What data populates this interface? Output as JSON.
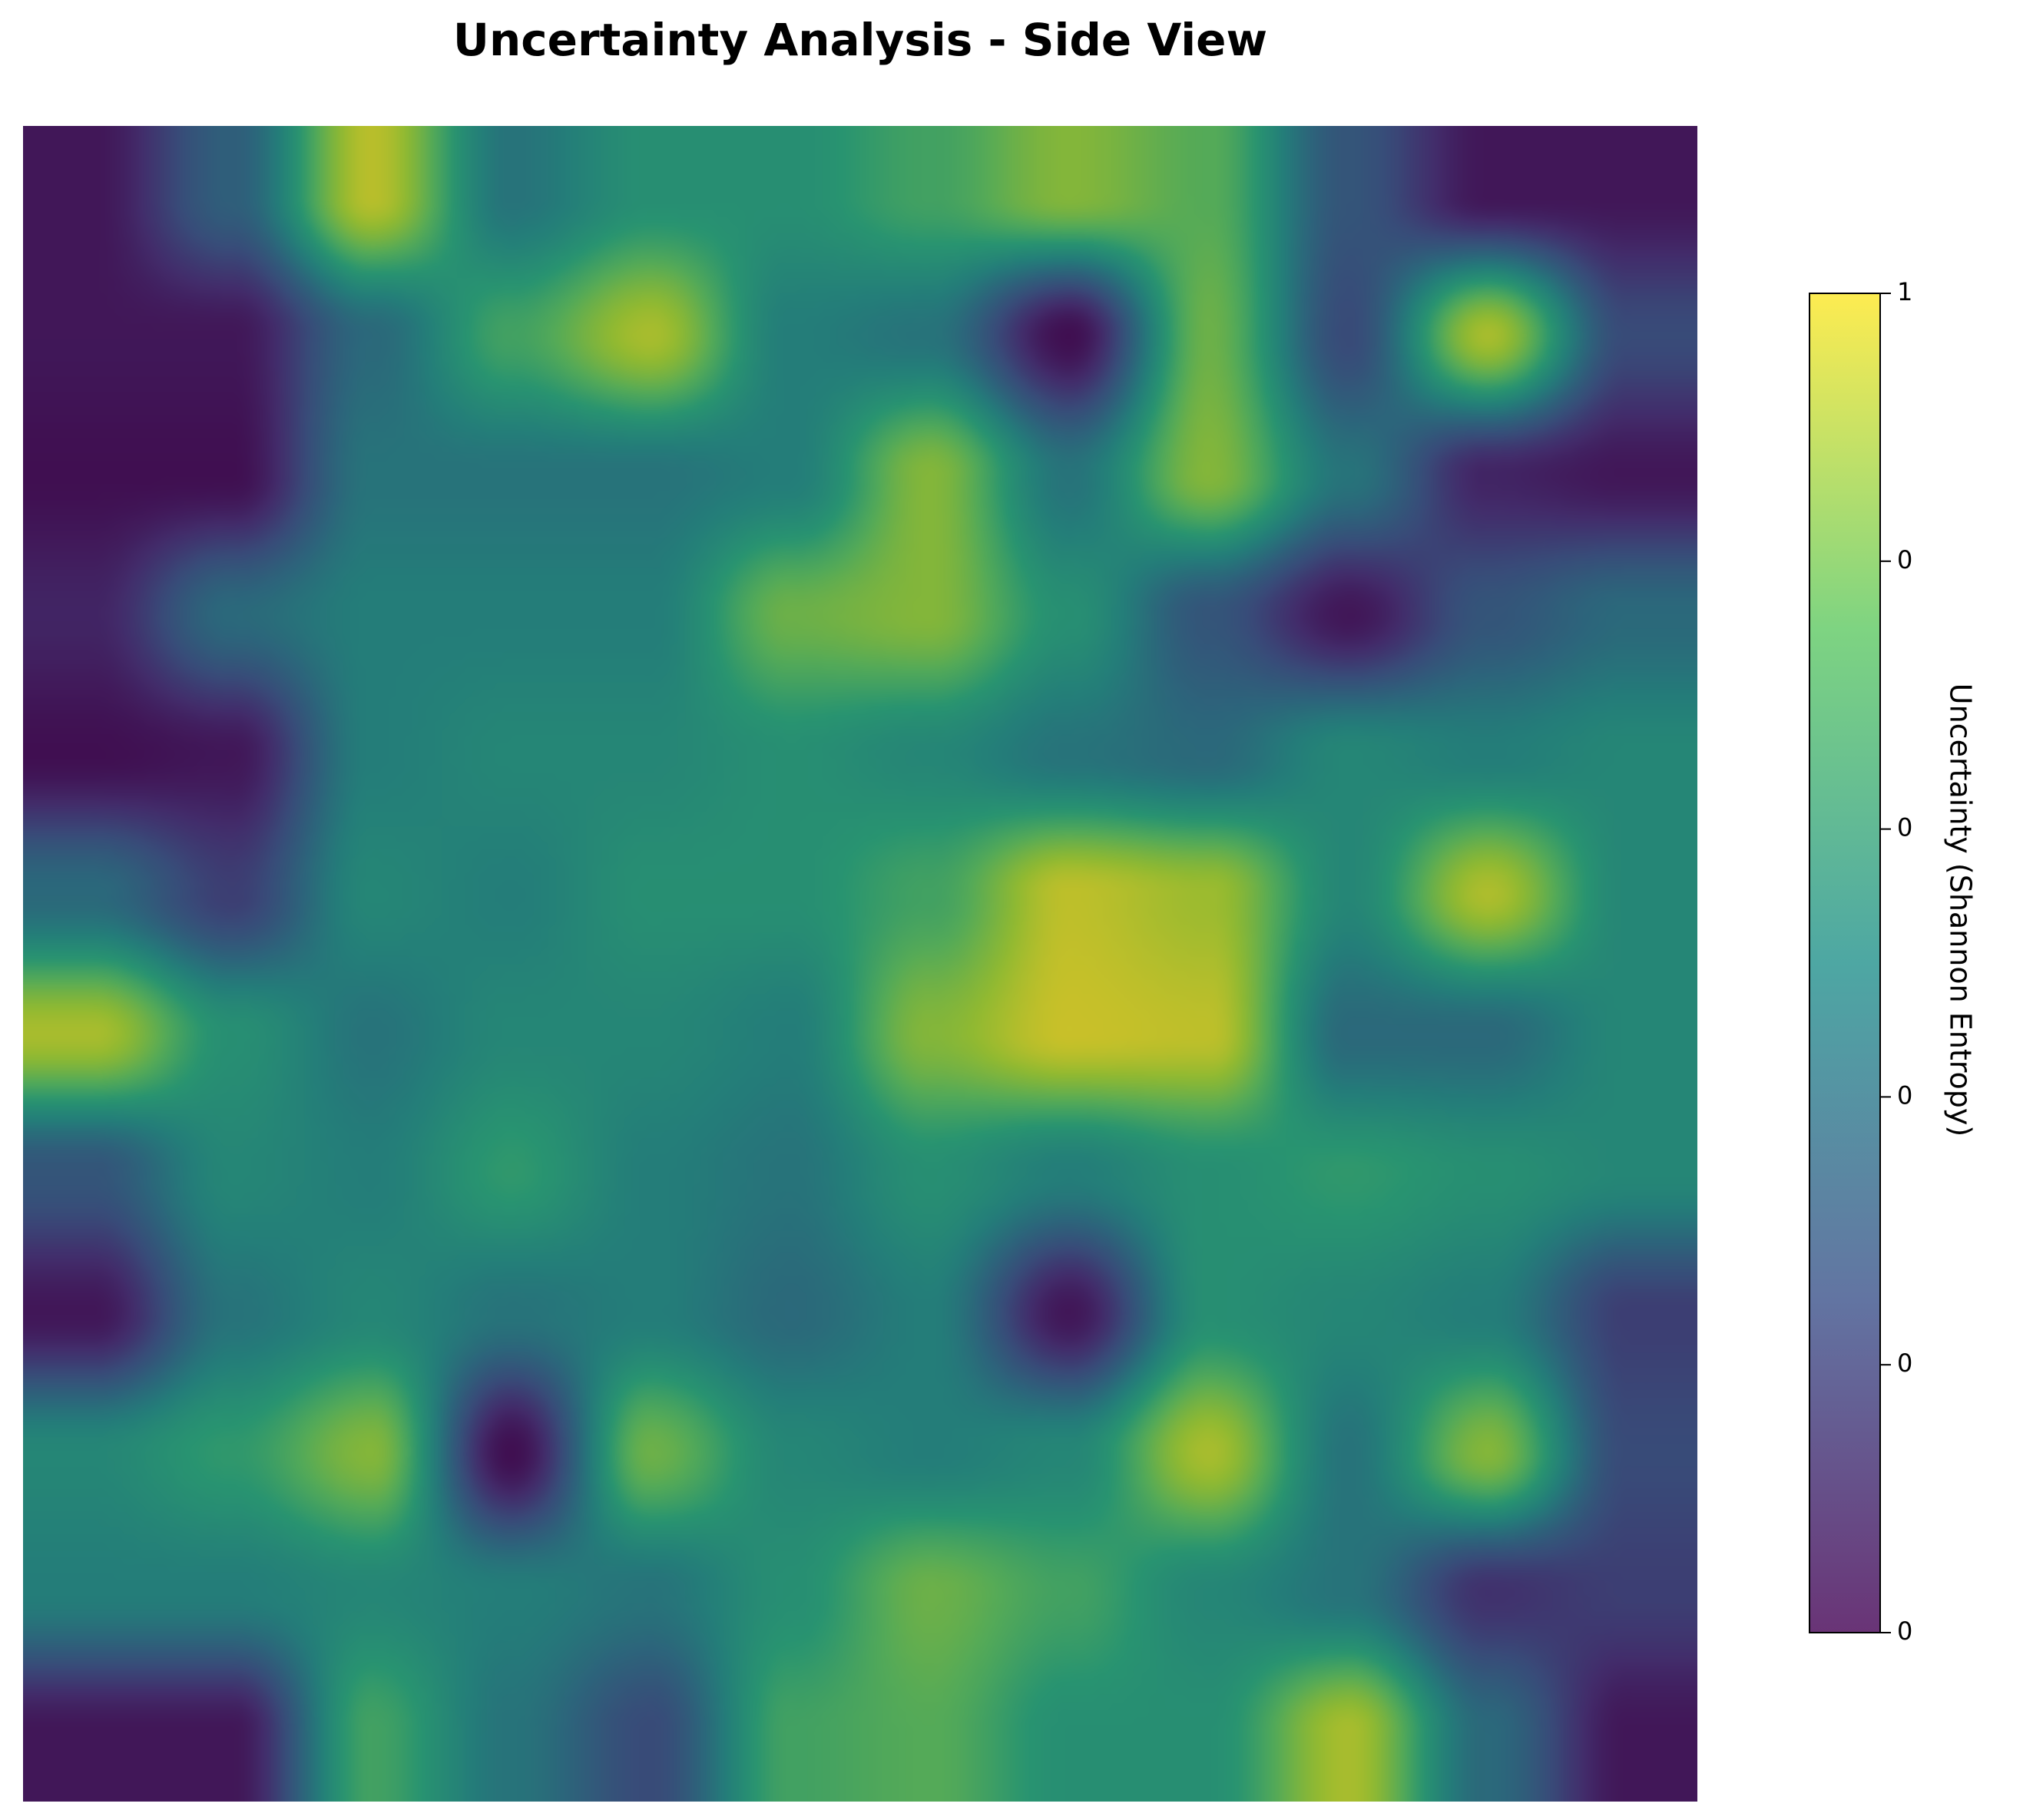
{
  "chart_data": {
    "type": "heatmap",
    "title": "Uncertainty Analysis - Side View",
    "colorbar": {
      "label": "Uncertainty (Shannon Entropy)",
      "range": [
        0.0,
        1.0
      ],
      "ticks": [
        "0.0",
        "0.2",
        "0.4",
        "0.6",
        "0.8",
        "1.0"
      ],
      "colormap": "viridis"
    },
    "interpolation": "smooth (bicubic)",
    "axes_visible": false,
    "grid": false,
    "overlay_alpha": 0.8,
    "rows": 12,
    "cols": 12,
    "values": [
      [
        0.05,
        0.35,
        0.95,
        0.45,
        0.6,
        0.6,
        0.7,
        0.85,
        0.75,
        0.3,
        0.05,
        0.05
      ],
      [
        0.05,
        0.05,
        0.4,
        0.7,
        0.92,
        0.5,
        0.45,
        0.02,
        0.8,
        0.25,
        0.92,
        0.25
      ],
      [
        0.02,
        0.02,
        0.45,
        0.45,
        0.45,
        0.5,
        0.85,
        0.45,
        0.85,
        0.45,
        0.1,
        0.05
      ],
      [
        0.1,
        0.4,
        0.5,
        0.5,
        0.5,
        0.8,
        0.85,
        0.6,
        0.3,
        0.05,
        0.3,
        0.4
      ],
      [
        0.02,
        0.05,
        0.5,
        0.55,
        0.55,
        0.6,
        0.55,
        0.45,
        0.4,
        0.55,
        0.5,
        0.55
      ],
      [
        0.4,
        0.2,
        0.55,
        0.5,
        0.6,
        0.6,
        0.7,
        0.96,
        0.9,
        0.55,
        0.93,
        0.55
      ],
      [
        0.92,
        0.6,
        0.45,
        0.55,
        0.55,
        0.5,
        0.85,
        0.98,
        0.96,
        0.4,
        0.4,
        0.55
      ],
      [
        0.3,
        0.55,
        0.5,
        0.65,
        0.5,
        0.45,
        0.6,
        0.5,
        0.6,
        0.65,
        0.6,
        0.55
      ],
      [
        0.05,
        0.45,
        0.55,
        0.45,
        0.5,
        0.4,
        0.5,
        0.05,
        0.6,
        0.55,
        0.5,
        0.2
      ],
      [
        0.55,
        0.65,
        0.85,
        0.02,
        0.8,
        0.55,
        0.5,
        0.55,
        0.92,
        0.45,
        0.85,
        0.25
      ],
      [
        0.5,
        0.5,
        0.55,
        0.5,
        0.45,
        0.6,
        0.8,
        0.7,
        0.55,
        0.45,
        0.15,
        0.2
      ],
      [
        0.05,
        0.05,
        0.7,
        0.45,
        0.25,
        0.7,
        0.75,
        0.6,
        0.6,
        0.92,
        0.4,
        0.05
      ]
    ]
  }
}
